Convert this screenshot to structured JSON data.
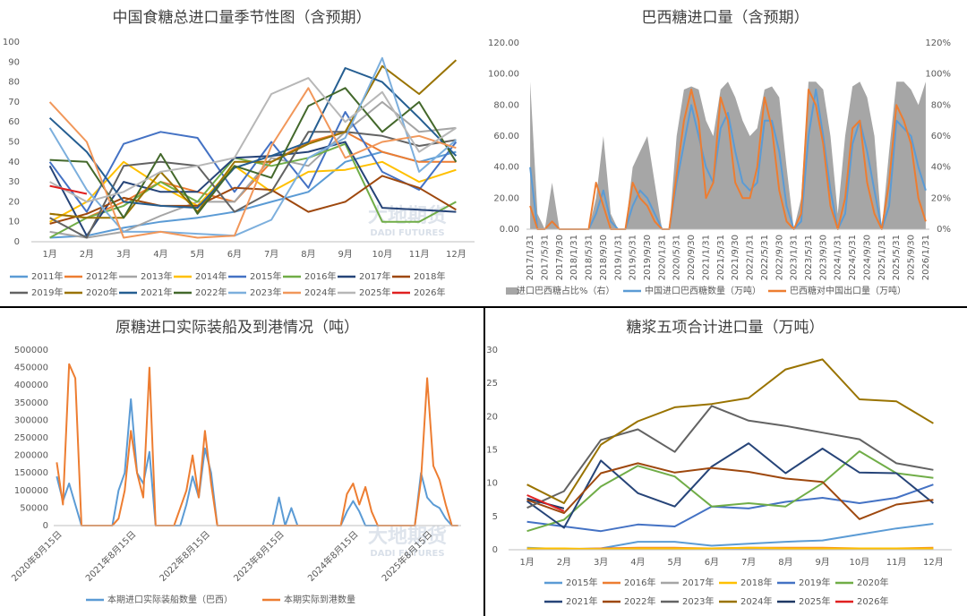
{
  "chart_data": [
    {
      "type": "line",
      "title": "中国食糖总进口量季节性图（含预期）",
      "watermark": [
        "大地期货",
        "DADI FUTURES"
      ],
      "categories": [
        "1月",
        "2月",
        "3月",
        "4月",
        "5月",
        "6月",
        "7月",
        "8月",
        "9月",
        "10月",
        "11月",
        "12月"
      ],
      "ylim": [
        0,
        100
      ],
      "yticks": [
        0,
        10,
        20,
        30,
        40,
        50,
        60,
        70,
        80,
        90,
        100
      ],
      "grid": false,
      "series": [
        {
          "name": "2011年",
          "color": "#5b9bd5",
          "values": [
            2,
            3,
            7,
            10,
            12,
            15,
            20,
            25,
            40,
            45,
            40,
            45
          ]
        },
        {
          "name": "2012年",
          "color": "#ed7d31",
          "values": [
            14,
            12,
            20,
            30,
            25,
            20,
            40,
            50,
            55,
            45,
            40,
            40
          ]
        },
        {
          "name": "2013年",
          "color": "#a5a5a5",
          "values": [
            5,
            2,
            5,
            13,
            20,
            20,
            42,
            38,
            55,
            70,
            55,
            57
          ]
        },
        {
          "name": "2014年",
          "color": "#ffc000",
          "values": [
            10,
            20,
            40,
            28,
            18,
            38,
            25,
            35,
            36,
            40,
            30,
            36
          ]
        },
        {
          "name": "2015年",
          "color": "#4472c4",
          "values": [
            40,
            15,
            49,
            55,
            52,
            25,
            50,
            27,
            65,
            35,
            26,
            50
          ]
        },
        {
          "name": "2016年",
          "color": "#70ad47",
          "values": [
            2,
            12,
            18,
            30,
            20,
            42,
            38,
            42,
            49,
            10,
            10,
            20
          ]
        },
        {
          "name": "2017年",
          "color": "#264478",
          "values": [
            38,
            3,
            30,
            25,
            25,
            42,
            43,
            45,
            50,
            17,
            16,
            15
          ]
        },
        {
          "name": "2018年",
          "color": "#9e480e",
          "values": [
            9,
            14,
            22,
            18,
            18,
            27,
            26,
            15,
            20,
            33,
            27,
            16
          ]
        },
        {
          "name": "2019年",
          "color": "#636363",
          "values": [
            12,
            2,
            38,
            40,
            38,
            15,
            25,
            55,
            55,
            53,
            48,
            51
          ]
        },
        {
          "name": "2020年",
          "color": "#997300",
          "values": [
            14,
            12,
            12,
            35,
            15,
            40,
            40,
            49,
            55,
            88,
            74,
            91
          ]
        },
        {
          "name": "2021年",
          "color": "#255e91",
          "values": [
            62,
            45,
            20,
            18,
            17,
            37,
            43,
            50,
            87,
            80,
            62,
            43
          ]
        },
        {
          "name": "2022年",
          "color": "#43682b",
          "values": [
            41,
            40,
            12,
            44,
            14,
            38,
            32,
            68,
            77,
            55,
            70,
            40
          ]
        },
        {
          "name": "2023年",
          "color": "#7cafdd",
          "values": [
            57,
            26,
            5,
            5,
            4,
            3,
            11,
            42,
            52,
            92,
            35,
            51
          ]
        },
        {
          "name": "2024年",
          "color": "#f1975a",
          "values": [
            70,
            50,
            2,
            5,
            2,
            3,
            48,
            77,
            42,
            50,
            53,
            47
          ]
        },
        {
          "name": "2025年",
          "color": "#b7b7b7",
          "values": [
            30,
            20,
            25,
            35,
            38,
            42,
            74,
            82,
            60,
            75,
            45,
            57
          ]
        },
        {
          "name": "2026年",
          "color": "#e02020",
          "values": [
            28,
            24,
            null,
            null,
            null,
            null,
            null,
            null,
            null,
            null,
            null,
            null
          ]
        }
      ]
    },
    {
      "type": "combo",
      "title": "巴西糖进口量（含预期）",
      "categories": [
        "2017/1/31",
        null,
        "2017/5/31",
        null,
        "2017/9/30",
        null,
        "2018/1/31",
        null,
        "2018/5/31",
        null,
        "2018/9/30",
        null,
        "2019/1/31",
        null,
        "2019/5/31",
        null,
        "2019/9/30",
        null,
        "2020/1/31",
        null,
        "2020/5/31",
        null,
        "2020/9/30",
        null,
        "2021/1/31",
        null,
        "2021/5/31",
        null,
        "2021/9/30",
        null,
        "2022/1/31",
        null,
        "2022/5/31",
        null,
        "2022/9/30",
        null,
        "2023/1/31",
        null,
        "2023/5/31",
        null,
        "2023/9/30",
        null,
        "2024/1/31",
        null,
        "2024/5/31",
        null,
        "2024/9/30",
        null,
        "2025/1/31",
        null,
        "2025/5/31",
        null,
        "2025/9/30",
        null,
        "2026/1/31"
      ],
      "ylim": [
        0,
        120
      ],
      "yticks": [
        {
          "value": 0,
          "label": "0.00"
        },
        {
          "value": 20,
          "label": "20.00"
        },
        {
          "value": 40,
          "label": "40.00"
        },
        {
          "value": 60,
          "label": "60.00"
        },
        {
          "value": 80,
          "label": "80.00"
        },
        {
          "value": 100,
          "label": "100.00"
        },
        {
          "value": 120,
          "label": "120.00"
        }
      ],
      "y2lim": [
        0,
        120
      ],
      "y2ticks": [
        {
          "value": 0,
          "label": "0%"
        },
        {
          "value": 20,
          "label": "20%"
        },
        {
          "value": 40,
          "label": "40%"
        },
        {
          "value": 60,
          "label": "60%"
        },
        {
          "value": 80,
          "label": "80%"
        },
        {
          "value": 100,
          "label": "100%"
        },
        {
          "value": 120,
          "label": "120%"
        }
      ],
      "grid": false,
      "series": [
        {
          "name": "进口巴西糖占比%（右）",
          "color": "#a6a6a6",
          "kind": "area",
          "axis": "y2",
          "values": [
            95,
            10,
            0,
            30,
            0,
            0,
            0,
            0,
            0,
            20,
            60,
            10,
            0,
            0,
            40,
            50,
            60,
            30,
            0,
            0,
            60,
            90,
            92,
            90,
            70,
            60,
            90,
            95,
            85,
            70,
            60,
            65,
            90,
            92,
            85,
            40,
            0,
            20,
            95,
            95,
            90,
            60,
            10,
            60,
            92,
            95,
            85,
            60,
            0,
            50,
            95,
            95,
            90,
            80,
            95
          ]
        },
        {
          "name": "中国进口巴西糖数量（万吨）",
          "color": "#5b9bd5",
          "kind": "line",
          "values": [
            40,
            0,
            0,
            5,
            0,
            0,
            0,
            0,
            0,
            10,
            25,
            5,
            0,
            0,
            15,
            25,
            20,
            10,
            0,
            0,
            30,
            55,
            80,
            60,
            40,
            30,
            65,
            75,
            50,
            30,
            25,
            30,
            70,
            70,
            50,
            15,
            0,
            5,
            60,
            90,
            60,
            25,
            0,
            10,
            55,
            70,
            50,
            25,
            0,
            15,
            70,
            65,
            60,
            40,
            25
          ]
        },
        {
          "name": "巴西糖对中国出口量（万吨）",
          "color": "#ed7d31",
          "kind": "line",
          "values": [
            15,
            0,
            0,
            5,
            0,
            0,
            0,
            0,
            0,
            30,
            15,
            0,
            0,
            0,
            30,
            20,
            15,
            5,
            0,
            0,
            35,
            70,
            90,
            70,
            20,
            30,
            85,
            70,
            30,
            20,
            20,
            40,
            85,
            65,
            25,
            5,
            0,
            10,
            90,
            80,
            55,
            15,
            0,
            20,
            65,
            70,
            30,
            10,
            0,
            30,
            80,
            70,
            55,
            20,
            5
          ]
        }
      ]
    },
    {
      "type": "line",
      "title": "原糖进口实际装船及到港情况（吨）",
      "watermark": [
        "大地期货",
        "DADI FUTURES"
      ],
      "categories": [
        "2020年8月15日",
        null,
        null,
        null,
        null,
        null,
        null,
        null,
        null,
        null,
        null,
        null,
        "2021年8月15日",
        null,
        null,
        null,
        null,
        null,
        null,
        null,
        null,
        null,
        null,
        null,
        "2022年8月15日",
        null,
        null,
        null,
        null,
        null,
        null,
        null,
        null,
        null,
        null,
        null,
        "2023年8月15日",
        null,
        null,
        null,
        null,
        null,
        null,
        null,
        null,
        null,
        null,
        null,
        "2024年8月15日",
        null,
        null,
        null,
        null,
        null,
        null,
        null,
        null,
        null,
        null,
        null,
        "2025年8月15日",
        null,
        null,
        null,
        null,
        null
      ],
      "ylim": [
        0,
        500000
      ],
      "yticks": [
        0,
        50000,
        100000,
        150000,
        200000,
        250000,
        300000,
        350000,
        400000,
        450000,
        500000
      ],
      "grid": false,
      "series": [
        {
          "name": "本期进口实际装船数量（巴西）",
          "color": "#5b9bd5",
          "values": [
            140000,
            70000,
            120000,
            60000,
            0,
            0,
            0,
            0,
            0,
            0,
            100000,
            150000,
            360000,
            150000,
            120000,
            210000,
            0,
            0,
            0,
            0,
            0,
            60000,
            140000,
            80000,
            220000,
            150000,
            0,
            0,
            0,
            0,
            0,
            0,
            0,
            0,
            0,
            0,
            80000,
            0,
            50000,
            0,
            0,
            0,
            0,
            0,
            0,
            0,
            0,
            40000,
            70000,
            40000,
            0,
            0,
            0,
            0,
            0,
            0,
            0,
            0,
            0,
            150000,
            80000,
            60000,
            50000,
            20000,
            0,
            0
          ]
        },
        {
          "name": "本期实际到港数量",
          "color": "#ed7d31",
          "values": [
            180000,
            60000,
            460000,
            420000,
            0,
            0,
            0,
            0,
            0,
            0,
            20000,
            100000,
            270000,
            150000,
            80000,
            450000,
            0,
            0,
            0,
            0,
            50000,
            100000,
            200000,
            80000,
            270000,
            120000,
            0,
            0,
            0,
            0,
            0,
            0,
            0,
            0,
            0,
            0,
            0,
            0,
            0,
            0,
            0,
            0,
            0,
            0,
            0,
            0,
            0,
            90000,
            120000,
            60000,
            110000,
            40000,
            0,
            0,
            0,
            0,
            0,
            0,
            0,
            130000,
            420000,
            170000,
            130000,
            60000,
            0,
            0
          ]
        }
      ]
    },
    {
      "type": "line",
      "title": "糖浆五项合计进口量（万吨）",
      "categories": [
        "1月",
        "2月",
        "3月",
        "4月",
        "5月",
        "6月",
        "7月",
        "8月",
        "9月",
        "10月",
        "11月",
        "12月"
      ],
      "ylim": [
        0,
        30
      ],
      "yticks": [
        0,
        5,
        10,
        15,
        20,
        25,
        30
      ],
      "grid": false,
      "series": [
        {
          "name": "2015年",
          "color": "#5b9bd5",
          "values": [
            0.3,
            0.1,
            0.2,
            1.2,
            1.2,
            0.6,
            0.9,
            1.2,
            1.4,
            2.3,
            3.2,
            3.9
          ]
        },
        {
          "name": "2016年",
          "color": "#ed7d31",
          "values": [
            0.2,
            0.1,
            0.2,
            0.3,
            0.3,
            0.2,
            0.3,
            0.3,
            0.3,
            0.2,
            0.2,
            0.3
          ]
        },
        {
          "name": "2017年",
          "color": "#a5a5a5",
          "values": [
            0.1,
            0.1,
            0.1,
            0.1,
            0.1,
            0.1,
            0.1,
            0.1,
            0.1,
            0.1,
            0.1,
            0.1
          ]
        },
        {
          "name": "2018年",
          "color": "#ffc000",
          "values": [
            0.2,
            0.2,
            0.1,
            0.2,
            0.2,
            0.2,
            0.3,
            0.2,
            0.2,
            0.2,
            0.2,
            0.2
          ]
        },
        {
          "name": "2019年",
          "color": "#4472c4",
          "values": [
            4.2,
            3.5,
            2.8,
            3.8,
            3.5,
            6.5,
            6.2,
            7.2,
            7.8,
            7.0,
            7.8,
            9.8
          ]
        },
        {
          "name": "2020年",
          "color": "#70ad47",
          "values": [
            2.8,
            4.5,
            9.5,
            12.6,
            11,
            6.5,
            7,
            6.5,
            10,
            14.8,
            11.5,
            10.8
          ]
        },
        {
          "name": "2021年",
          "color": "#264478",
          "values": [
            7.3,
            3.3,
            13.4,
            8.5,
            6.5,
            12.5,
            16,
            11.5,
            15.2,
            11.6,
            11.5,
            7
          ]
        },
        {
          "name": "2022年",
          "color": "#9e480e",
          "values": [
            7.5,
            5.5,
            11.5,
            13,
            11.6,
            12.3,
            11.7,
            10.7,
            10.2,
            4.6,
            6.8,
            7.5
          ]
        },
        {
          "name": "2023年",
          "color": "#636363",
          "values": [
            6.3,
            8.8,
            16.5,
            18.1,
            14.7,
            21.6,
            19.4,
            18.6,
            17.6,
            16.6,
            13,
            12
          ]
        },
        {
          "name": "2024年",
          "color": "#997300",
          "values": [
            9.8,
            7,
            15.8,
            19.3,
            21.4,
            21.9,
            22.8,
            27.1,
            28.6,
            22.6,
            22.3,
            19
          ]
        },
        {
          "name": "2025年",
          "color": "#1f3864",
          "values": [
            7.7,
            6.2,
            null,
            null,
            null,
            null,
            null,
            null,
            null,
            null,
            null,
            null
          ]
        },
        {
          "name": "2026年",
          "color": "#e02020",
          "values": [
            8.2,
            5.8,
            null,
            null,
            null,
            null,
            null,
            null,
            null,
            null,
            null,
            null
          ]
        }
      ]
    }
  ]
}
